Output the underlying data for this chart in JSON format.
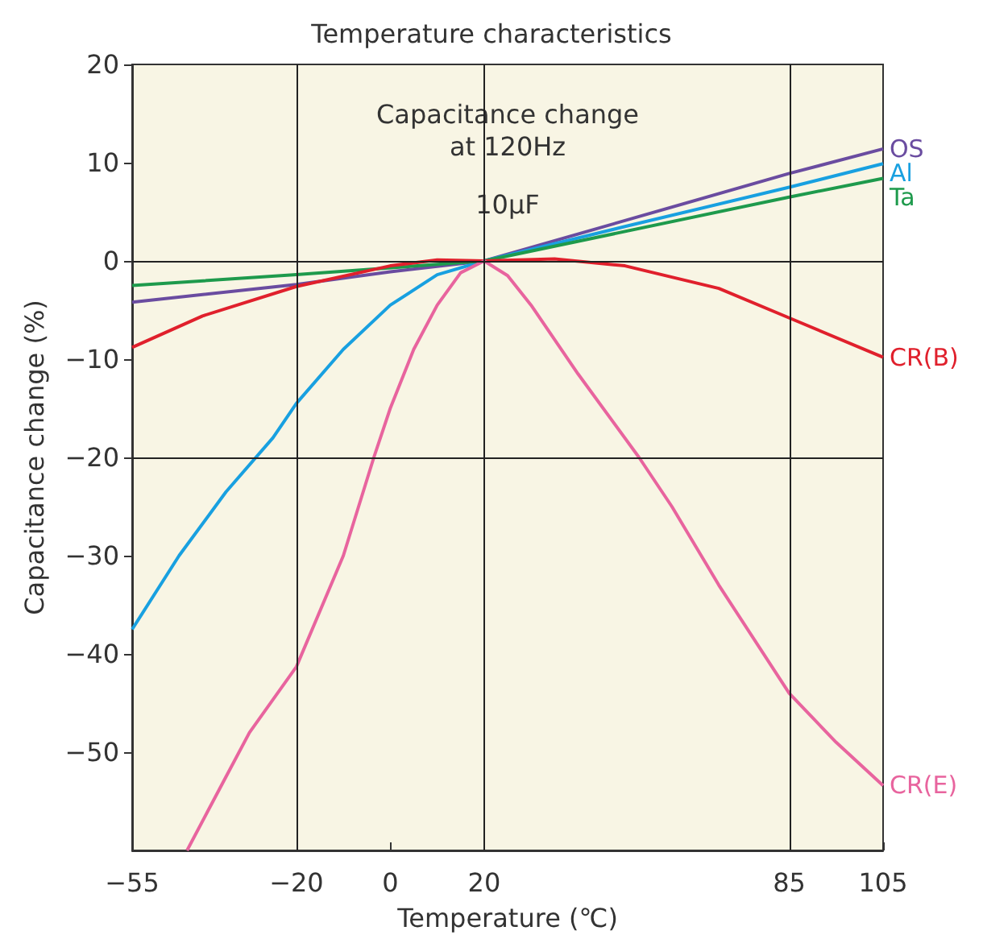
{
  "chart_data": {
    "type": "line",
    "title": "Temperature characteristics",
    "xlabel": "Temperature (℃)",
    "ylabel": "Capacitance change (%)",
    "annotations": [
      "Capacitance change\nat 120Hz",
      "10μF"
    ],
    "xlim": [
      -55,
      105
    ],
    "xticks": [
      -55,
      -20,
      0,
      20,
      85,
      105
    ],
    "ylim": [
      -60,
      20
    ],
    "yticks": [
      -50,
      -40,
      -30,
      -20,
      -10,
      0,
      10,
      20
    ],
    "grid": false,
    "legend": false,
    "marker": "none",
    "line_style": "solid",
    "ref_lines": [
      {
        "axis": "x",
        "value": -20,
        "color": "#222222"
      },
      {
        "axis": "x",
        "value": 20,
        "color": "#222222"
      },
      {
        "axis": "x",
        "value": 85,
        "color": "#222222"
      },
      {
        "axis": "y",
        "value": 0,
        "color": "#222222"
      },
      {
        "axis": "y",
        "value": -20,
        "color": "#222222"
      }
    ],
    "series": [
      {
        "name": "OS",
        "color": "#6a4ca0",
        "x": [
          -55,
          -20,
          0,
          20,
          85,
          105
        ],
        "values": [
          -4.2,
          -2.4,
          -1.1,
          0,
          8.9,
          11.4
        ]
      },
      {
        "name": "Al",
        "color": "#18a0e0",
        "x": [
          -55,
          -45,
          -35,
          -25,
          -20,
          -10,
          0,
          10,
          20,
          50,
          85,
          105
        ],
        "values": [
          -37.5,
          -30,
          -23.5,
          -18,
          -14.5,
          -9,
          -4.5,
          -1.4,
          0,
          3.5,
          7.5,
          9.9
        ]
      },
      {
        "name": "Ta",
        "color": "#1e9a4c",
        "x": [
          -55,
          -20,
          20,
          85,
          105
        ],
        "values": [
          -2.5,
          -1.4,
          0,
          6.5,
          8.4
        ]
      },
      {
        "name": "CR(B)",
        "color": "#e0202c",
        "x": [
          -55,
          -40,
          -20,
          0,
          10,
          20,
          35,
          50,
          70,
          85,
          105
        ],
        "values": [
          -8.8,
          -5.6,
          -2.6,
          -0.5,
          0.1,
          0,
          0.2,
          -0.5,
          -2.8,
          -5.8,
          -9.8
        ]
      },
      {
        "name": "CR(E)",
        "color": "#e8649e",
        "x": [
          -43.3,
          -35,
          -30,
          -20,
          -10,
          -3.5,
          0,
          5,
          10,
          15,
          20,
          25,
          30,
          40,
          53,
          60,
          70,
          85,
          95,
          105
        ],
        "values": [
          -60,
          -52.5,
          -48,
          -41.3,
          -30,
          -20,
          -15,
          -9,
          -4.5,
          -1.2,
          0,
          -1.5,
          -4.5,
          -11.5,
          -20,
          -25,
          -33,
          -44,
          -49,
          -53.4
        ]
      }
    ]
  }
}
